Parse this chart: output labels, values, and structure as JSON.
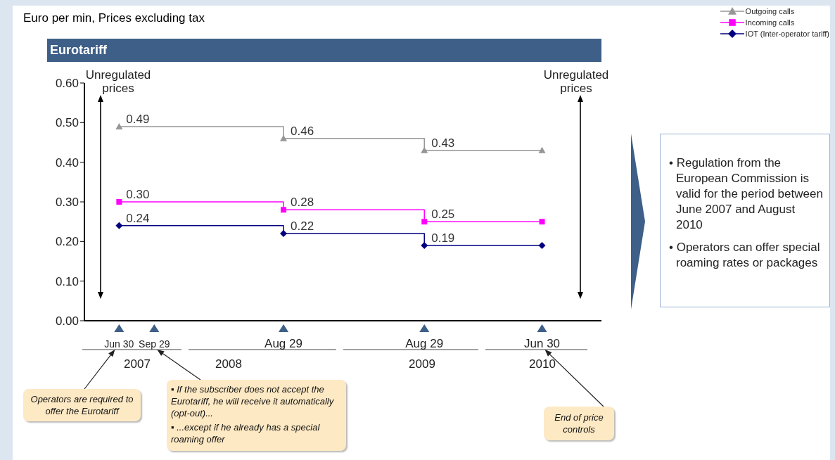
{
  "chart_data": {
    "type": "step",
    "title": "Euro per min, Prices excluding tax",
    "subtitle": "Eurotariff",
    "x": [
      "2007-06-30",
      "2008-08-29",
      "2009-08-29",
      "2010-06-30"
    ],
    "xlim": [
      "2007-04-01",
      "2010-12-01"
    ],
    "xticks": [
      {
        "value": "2007-06-30",
        "label": "Jun 30"
      },
      {
        "value": "2007-09-29",
        "label": "Sep 29"
      },
      {
        "value": "2008-08-29",
        "label": "Aug 29"
      },
      {
        "value": "2009-08-29",
        "label": "Aug 29"
      },
      {
        "value": "2010-06-30",
        "label": "Jun 30"
      }
    ],
    "ylim": [
      0,
      0.6
    ],
    "yticks": [
      {
        "value": 0,
        "label": "0.00"
      },
      {
        "value": 0.1,
        "label": "0.10"
      },
      {
        "value": 0.2,
        "label": "0.20"
      },
      {
        "value": 0.3,
        "label": "0.30"
      },
      {
        "value": 0.4,
        "label": "0.40"
      },
      {
        "value": 0.5,
        "label": "0.50"
      },
      {
        "value": 0.6,
        "label": "0.60"
      }
    ],
    "series": [
      {
        "name": "Outgoing calls",
        "color": "#969696",
        "marker": "triangle",
        "values": [
          0.49,
          0.46,
          0.43,
          0.43
        ],
        "value_labels": [
          "0.49",
          "0.46",
          "0.43",
          null
        ]
      },
      {
        "name": "Incoming calls",
        "color": "#ff00ff",
        "marker": "square",
        "values": [
          0.3,
          0.28,
          0.25,
          0.25
        ],
        "value_labels": [
          "0.30",
          "0.28",
          "0.25",
          null
        ]
      },
      {
        "name": "IOT (Inter-operator tariff)",
        "color": "#000080",
        "marker": "diamond",
        "values": [
          0.24,
          0.22,
          0.19,
          0.19
        ],
        "value_labels": [
          "0.24",
          "0.22",
          "0.19",
          null
        ]
      }
    ],
    "grid": false,
    "legend": "top right",
    "annotations": [
      "Unregulated prices",
      "Unregulated prices",
      "2007",
      "2008",
      "2009",
      "2010",
      "Operators are required to offer the Eurotariff",
      "▪ If the subscriber does not accept the Eurotariff, he will receive it automatically (opt-out)...\n▪ ...except if he already has a special roaming offer",
      "End of price controls",
      "• Regulation from the European Commission is valid for the period between June 2007 and August 2010\n• Operators can offer special roaming rates or packages"
    ]
  }
}
